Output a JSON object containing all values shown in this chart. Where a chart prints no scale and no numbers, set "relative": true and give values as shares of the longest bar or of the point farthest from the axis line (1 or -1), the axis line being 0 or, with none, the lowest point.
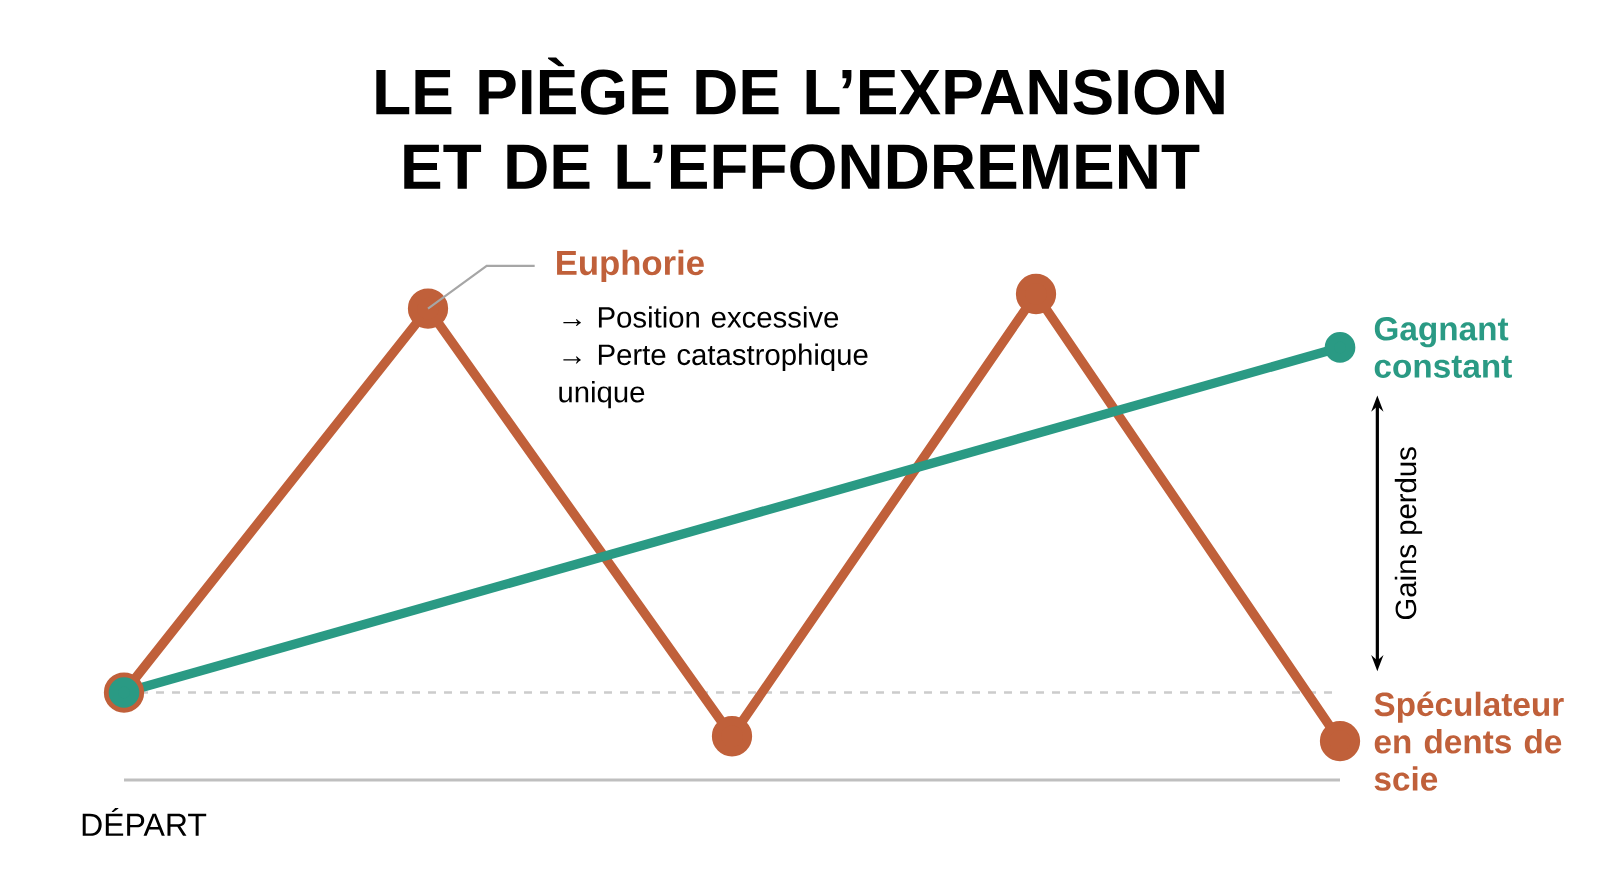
{
  "chart_data": {
    "type": "line",
    "title": "LE PIÈGE DE L’EXPANSION ET DE L’EFFONDREMENT",
    "categories": [
      null,
      null,
      null,
      null,
      null
    ],
    "relative": true,
    "marker": "circle",
    "series": [
      {
        "name": "Spéculateur en dents de scie",
        "color": "#c0603a",
        "values": [
          0.18,
          0.97,
          0.09,
          1,
          0.08
        ]
      },
      {
        "name": "Gagnant constant",
        "color": "#2a9a84",
        "values": [
          0.18,
          null,
          null,
          null,
          0.89
        ]
      }
    ],
    "ref_lines": [
      {
        "axis": "y",
        "value": 0.18,
        "color": "#cccccc",
        "line_style": "dashed"
      }
    ],
    "annotations": [
      "Euphorie",
      "→ Position excessive",
      "→ Perte catastrophique unique",
      "Gains perdus",
      "DÉPART"
    ]
  }
}
